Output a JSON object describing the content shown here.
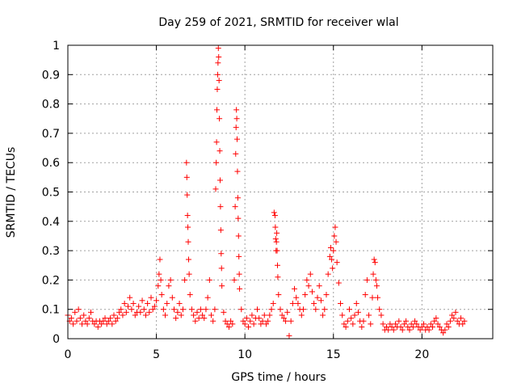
{
  "chart_data": {
    "type": "scatter",
    "title": "Day 259 of 2021, SRMTID for receiver wlal",
    "xlabel": "GPS time / hours",
    "ylabel": "SRMTID / TECUs",
    "xlim": [
      0,
      24
    ],
    "ylim": [
      0,
      1
    ],
    "xticks": [
      0,
      5,
      10,
      15,
      20
    ],
    "xtick_labels": [
      "0",
      "5",
      "10",
      "15",
      "20"
    ],
    "yticks": [
      0,
      0.1,
      0.2,
      0.3,
      0.4,
      0.5,
      0.6,
      0.7,
      0.8,
      0.9,
      1
    ],
    "ytick_labels": [
      "0",
      "0.1",
      "0.2",
      "0.3",
      "0.4",
      "0.5",
      "0.6",
      "0.7",
      "0.8",
      "0.9",
      "1"
    ],
    "grid": true,
    "marker": "+",
    "color": "#ff0000",
    "series": [
      {
        "name": "SRMTID",
        "points": [
          [
            0.0,
            0.08
          ],
          [
            0.1,
            0.06
          ],
          [
            0.2,
            0.07
          ],
          [
            0.3,
            0.05
          ],
          [
            0.4,
            0.09
          ],
          [
            0.5,
            0.06
          ],
          [
            0.6,
            0.1
          ],
          [
            0.7,
            0.07
          ],
          [
            0.8,
            0.05
          ],
          [
            0.9,
            0.08
          ],
          [
            1.0,
            0.06
          ],
          [
            1.1,
            0.05
          ],
          [
            1.2,
            0.07
          ],
          [
            1.3,
            0.09
          ],
          [
            1.4,
            0.06
          ],
          [
            1.5,
            0.05
          ],
          [
            1.6,
            0.06
          ],
          [
            1.7,
            0.04
          ],
          [
            1.8,
            0.06
          ],
          [
            1.9,
            0.05
          ],
          [
            2.0,
            0.06
          ],
          [
            2.1,
            0.07
          ],
          [
            2.2,
            0.05
          ],
          [
            2.3,
            0.06
          ],
          [
            2.4,
            0.07
          ],
          [
            2.5,
            0.05
          ],
          [
            2.6,
            0.08
          ],
          [
            2.7,
            0.06
          ],
          [
            2.8,
            0.07
          ],
          [
            2.9,
            0.09
          ],
          [
            3.0,
            0.1
          ],
          [
            3.1,
            0.08
          ],
          [
            3.2,
            0.12
          ],
          [
            3.3,
            0.09
          ],
          [
            3.4,
            0.11
          ],
          [
            3.5,
            0.14
          ],
          [
            3.6,
            0.1
          ],
          [
            3.7,
            0.12
          ],
          [
            3.8,
            0.08
          ],
          [
            3.9,
            0.09
          ],
          [
            4.0,
            0.11
          ],
          [
            4.1,
            0.09
          ],
          [
            4.2,
            0.13
          ],
          [
            4.3,
            0.1
          ],
          [
            4.4,
            0.08
          ],
          [
            4.5,
            0.12
          ],
          [
            4.6,
            0.09
          ],
          [
            4.7,
            0.14
          ],
          [
            4.8,
            0.1
          ],
          [
            4.9,
            0.11
          ],
          [
            5.0,
            0.13
          ],
          [
            5.1,
            0.18
          ],
          [
            5.15,
            0.22
          ],
          [
            5.2,
            0.27
          ],
          [
            5.25,
            0.2
          ],
          [
            5.3,
            0.15
          ],
          [
            5.4,
            0.1
          ],
          [
            5.5,
            0.08
          ],
          [
            5.6,
            0.12
          ],
          [
            5.7,
            0.18
          ],
          [
            5.8,
            0.2
          ],
          [
            5.9,
            0.14
          ],
          [
            6.0,
            0.1
          ],
          [
            6.1,
            0.07
          ],
          [
            6.2,
            0.09
          ],
          [
            6.3,
            0.12
          ],
          [
            6.4,
            0.08
          ],
          [
            6.5,
            0.1
          ],
          [
            6.6,
            0.2
          ],
          [
            6.7,
            0.6
          ],
          [
            6.72,
            0.55
          ],
          [
            6.74,
            0.49
          ],
          [
            6.76,
            0.42
          ],
          [
            6.78,
            0.38
          ],
          [
            6.8,
            0.33
          ],
          [
            6.82,
            0.27
          ],
          [
            6.85,
            0.22
          ],
          [
            6.9,
            0.15
          ],
          [
            7.0,
            0.1
          ],
          [
            7.1,
            0.08
          ],
          [
            7.2,
            0.06
          ],
          [
            7.3,
            0.09
          ],
          [
            7.4,
            0.07
          ],
          [
            7.5,
            0.1
          ],
          [
            7.6,
            0.08
          ],
          [
            7.7,
            0.07
          ],
          [
            7.8,
            0.1
          ],
          [
            7.9,
            0.14
          ],
          [
            8.0,
            0.2
          ],
          [
            8.1,
            0.08
          ],
          [
            8.2,
            0.06
          ],
          [
            8.3,
            0.1
          ],
          [
            8.35,
            0.51
          ],
          [
            8.38,
            0.6
          ],
          [
            8.4,
            0.67
          ],
          [
            8.42,
            0.78
          ],
          [
            8.44,
            0.85
          ],
          [
            8.46,
            0.9
          ],
          [
            8.48,
            0.94
          ],
          [
            8.5,
            0.99
          ],
          [
            8.52,
            0.96
          ],
          [
            8.54,
            0.88
          ],
          [
            8.56,
            0.75
          ],
          [
            8.58,
            0.64
          ],
          [
            8.6,
            0.54
          ],
          [
            8.62,
            0.45
          ],
          [
            8.64,
            0.37
          ],
          [
            8.66,
            0.29
          ],
          [
            8.68,
            0.24
          ],
          [
            8.7,
            0.18
          ],
          [
            8.8,
            0.09
          ],
          [
            8.9,
            0.06
          ],
          [
            9.0,
            0.05
          ],
          [
            9.1,
            0.04
          ],
          [
            9.2,
            0.06
          ],
          [
            9.3,
            0.05
          ],
          [
            9.4,
            0.2
          ],
          [
            9.45,
            0.45
          ],
          [
            9.48,
            0.63
          ],
          [
            9.5,
            0.72
          ],
          [
            9.52,
            0.78
          ],
          [
            9.54,
            0.75
          ],
          [
            9.56,
            0.68
          ],
          [
            9.58,
            0.57
          ],
          [
            9.6,
            0.48
          ],
          [
            9.62,
            0.41
          ],
          [
            9.64,
            0.35
          ],
          [
            9.66,
            0.28
          ],
          [
            9.68,
            0.22
          ],
          [
            9.7,
            0.17
          ],
          [
            9.8,
            0.1
          ],
          [
            9.9,
            0.06
          ],
          [
            10.0,
            0.05
          ],
          [
            10.1,
            0.07
          ],
          [
            10.2,
            0.04
          ],
          [
            10.3,
            0.06
          ],
          [
            10.4,
            0.08
          ],
          [
            10.5,
            0.05
          ],
          [
            10.6,
            0.07
          ],
          [
            10.7,
            0.1
          ],
          [
            10.8,
            0.07
          ],
          [
            10.9,
            0.05
          ],
          [
            11.0,
            0.06
          ],
          [
            11.1,
            0.08
          ],
          [
            11.2,
            0.05
          ],
          [
            11.3,
            0.06
          ],
          [
            11.4,
            0.08
          ],
          [
            11.5,
            0.1
          ],
          [
            11.6,
            0.12
          ],
          [
            11.65,
            0.43
          ],
          [
            11.7,
            0.42
          ],
          [
            11.72,
            0.38
          ],
          [
            11.74,
            0.34
          ],
          [
            11.76,
            0.3
          ],
          [
            11.78,
            0.33
          ],
          [
            11.8,
            0.36
          ],
          [
            11.82,
            0.3
          ],
          [
            11.84,
            0.25
          ],
          [
            11.86,
            0.21
          ],
          [
            11.9,
            0.15
          ],
          [
            12.0,
            0.1
          ],
          [
            12.1,
            0.08
          ],
          [
            12.2,
            0.07
          ],
          [
            12.3,
            0.06
          ],
          [
            12.4,
            0.09
          ],
          [
            12.5,
            0.01
          ],
          [
            12.6,
            0.06
          ],
          [
            12.7,
            0.12
          ],
          [
            12.8,
            0.17
          ],
          [
            12.9,
            0.14
          ],
          [
            13.0,
            0.12
          ],
          [
            13.1,
            0.1
          ],
          [
            13.2,
            0.08
          ],
          [
            13.3,
            0.1
          ],
          [
            13.4,
            0.15
          ],
          [
            13.5,
            0.2
          ],
          [
            13.6,
            0.18
          ],
          [
            13.7,
            0.22
          ],
          [
            13.8,
            0.16
          ],
          [
            13.9,
            0.12
          ],
          [
            14.0,
            0.1
          ],
          [
            14.1,
            0.14
          ],
          [
            14.2,
            0.18
          ],
          [
            14.3,
            0.13
          ],
          [
            14.4,
            0.08
          ],
          [
            14.5,
            0.1
          ],
          [
            14.6,
            0.15
          ],
          [
            14.7,
            0.22
          ],
          [
            14.8,
            0.28
          ],
          [
            14.85,
            0.31
          ],
          [
            14.9,
            0.27
          ],
          [
            14.95,
            0.24
          ],
          [
            15.0,
            0.3
          ],
          [
            15.05,
            0.35
          ],
          [
            15.1,
            0.38
          ],
          [
            15.15,
            0.33
          ],
          [
            15.2,
            0.26
          ],
          [
            15.3,
            0.19
          ],
          [
            15.4,
            0.12
          ],
          [
            15.5,
            0.08
          ],
          [
            15.6,
            0.05
          ],
          [
            15.7,
            0.04
          ],
          [
            15.8,
            0.06
          ],
          [
            15.9,
            0.1
          ],
          [
            16.0,
            0.07
          ],
          [
            16.1,
            0.05
          ],
          [
            16.2,
            0.08
          ],
          [
            16.3,
            0.12
          ],
          [
            16.4,
            0.09
          ],
          [
            16.5,
            0.06
          ],
          [
            16.6,
            0.04
          ],
          [
            16.7,
            0.06
          ],
          [
            16.8,
            0.15
          ],
          [
            16.9,
            0.2
          ],
          [
            17.0,
            0.08
          ],
          [
            17.1,
            0.05
          ],
          [
            17.2,
            0.14
          ],
          [
            17.25,
            0.22
          ],
          [
            17.3,
            0.27
          ],
          [
            17.35,
            0.26
          ],
          [
            17.4,
            0.2
          ],
          [
            17.45,
            0.18
          ],
          [
            17.5,
            0.14
          ],
          [
            17.6,
            0.1
          ],
          [
            17.7,
            0.08
          ],
          [
            17.8,
            0.05
          ],
          [
            17.9,
            0.03
          ],
          [
            18.0,
            0.04
          ],
          [
            18.1,
            0.03
          ],
          [
            18.2,
            0.05
          ],
          [
            18.3,
            0.04
          ],
          [
            18.4,
            0.03
          ],
          [
            18.5,
            0.05
          ],
          [
            18.6,
            0.04
          ],
          [
            18.7,
            0.06
          ],
          [
            18.8,
            0.04
          ],
          [
            18.9,
            0.03
          ],
          [
            19.0,
            0.05
          ],
          [
            19.1,
            0.06
          ],
          [
            19.2,
            0.04
          ],
          [
            19.3,
            0.03
          ],
          [
            19.4,
            0.05
          ],
          [
            19.5,
            0.04
          ],
          [
            19.6,
            0.06
          ],
          [
            19.7,
            0.05
          ],
          [
            19.8,
            0.04
          ],
          [
            19.9,
            0.03
          ],
          [
            20.0,
            0.04
          ],
          [
            20.1,
            0.05
          ],
          [
            20.2,
            0.03
          ],
          [
            20.3,
            0.04
          ],
          [
            20.4,
            0.03
          ],
          [
            20.5,
            0.05
          ],
          [
            20.6,
            0.04
          ],
          [
            20.7,
            0.06
          ],
          [
            20.8,
            0.07
          ],
          [
            20.9,
            0.05
          ],
          [
            21.0,
            0.04
          ],
          [
            21.1,
            0.03
          ],
          [
            21.2,
            0.02
          ],
          [
            21.3,
            0.03
          ],
          [
            21.4,
            0.05
          ],
          [
            21.5,
            0.04
          ],
          [
            21.6,
            0.06
          ],
          [
            21.7,
            0.08
          ],
          [
            21.8,
            0.07
          ],
          [
            21.9,
            0.09
          ],
          [
            22.0,
            0.06
          ],
          [
            22.1,
            0.05
          ],
          [
            22.2,
            0.07
          ],
          [
            22.3,
            0.05
          ],
          [
            22.4,
            0.06
          ]
        ]
      }
    ]
  }
}
